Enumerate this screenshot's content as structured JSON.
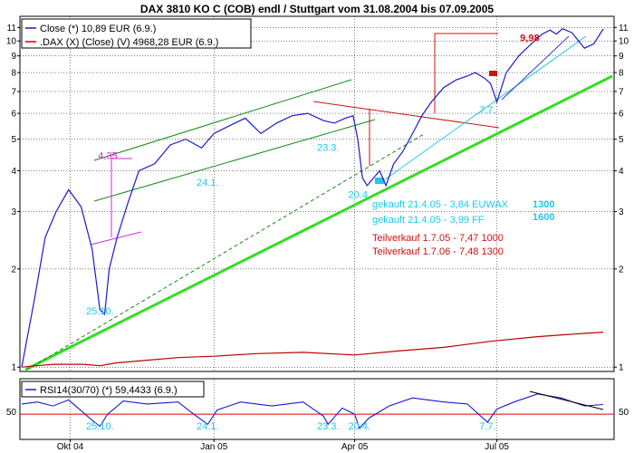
{
  "chart_data": {
    "type": "line",
    "title": "DAX 3810 KO C (COB) endl / Stuttgart vom 31.08.2004 bis 07.09.2005",
    "colors": {
      "close": "#1a1ad0",
      "dax": "#c00000",
      "rsi": "#1a1ad0",
      "rsi_level": "#e00000",
      "trend_main": "#33dd22",
      "channel": "#138a13",
      "cyan": "#1ec8ee",
      "magenta": "#e020e0",
      "red_ann": "#d01010",
      "dashed": "#108a10"
    },
    "x_ticks": [
      {
        "label": "Okt 04",
        "day": 31
      },
      {
        "label": "Jan 05",
        "day": 123
      },
      {
        "label": "Apr 05",
        "day": 213
      },
      {
        "label": "Jul 05",
        "day": 304
      }
    ],
    "x_range": {
      "start": "31.08.2004",
      "end": "07.09.2005",
      "days": 372
    },
    "main_panel": {
      "scale": "log",
      "ylim": [
        0.97,
        11.9
      ],
      "y_ticks": [
        "1",
        "2",
        "3",
        "4",
        "5",
        "6",
        "7",
        "8",
        "9",
        "10",
        "11"
      ],
      "y_tick_values": [
        1,
        2,
        3,
        4,
        5,
        6,
        7,
        8,
        9,
        10,
        11
      ]
    },
    "legend": [
      {
        "key": "close",
        "text": "Close (*) 10,89 EUR (6.9.)"
      },
      {
        "key": "dax",
        "text": ".DAX (X) (Close) (V) 4968,28 EUR (6.9.)"
      }
    ],
    "series": [
      {
        "name": "Close",
        "key": "close",
        "x": [
          0,
          8,
          15,
          22,
          30,
          38,
          45,
          50,
          53,
          56,
          61,
          68,
          75,
          85,
          95,
          105,
          115,
          123,
          133,
          143,
          153,
          163,
          173,
          183,
          193,
          200,
          207,
          212,
          215,
          218,
          221,
          225,
          229,
          233,
          238,
          244,
          250,
          256,
          262,
          270,
          278,
          285,
          290,
          296,
          300,
          304,
          310,
          318,
          326,
          333,
          338,
          342,
          346,
          352,
          360,
          366,
          372
        ],
        "y": [
          1.0,
          1.6,
          2.5,
          3.0,
          3.5,
          3.1,
          2.3,
          1.5,
          1.45,
          2.0,
          2.5,
          3.2,
          4.0,
          4.2,
          4.8,
          5.0,
          4.7,
          5.2,
          5.5,
          5.8,
          5.2,
          5.6,
          5.9,
          6.0,
          5.7,
          5.6,
          5.8,
          5.9,
          5.0,
          3.8,
          3.6,
          3.8,
          4.0,
          3.6,
          4.2,
          4.6,
          5.2,
          5.9,
          6.5,
          7.2,
          7.6,
          7.8,
          8.0,
          7.7,
          7.4,
          6.5,
          8.0,
          9.0,
          9.8,
          10.5,
          10.8,
          10.5,
          10.9,
          10.6,
          9.5,
          9.8,
          10.89
        ]
      },
      {
        "name": ".DAX (X) (Close) (V)",
        "key": "dax",
        "x": [
          0,
          20,
          40,
          50,
          60,
          80,
          100,
          123,
          150,
          180,
          213,
          240,
          270,
          300,
          330,
          350,
          372
        ],
        "y": [
          1.0,
          1.02,
          1.02,
          1.01,
          1.03,
          1.05,
          1.07,
          1.08,
          1.1,
          1.11,
          1.09,
          1.12,
          1.15,
          1.2,
          1.24,
          1.26,
          1.28
        ]
      }
    ],
    "annotations": [
      {
        "text": "9,98",
        "key": "red_ann",
        "x": 325,
        "y": 9.98
      },
      {
        "text": "4,35",
        "key": "magenta",
        "x": 55,
        "y": 4.35
      },
      {
        "text": "24.1.",
        "key": "cyan",
        "x": 119,
        "y": 3.6
      },
      {
        "text": "23.3.",
        "key": "cyan",
        "x": 196,
        "y": 4.6
      },
      {
        "text": "20.4.",
        "key": "cyan",
        "x": 216,
        "y": 3.3
      },
      {
        "text": "25.10.",
        "key": "cyan",
        "x": 50,
        "y": 1.45
      },
      {
        "text": "7.7.",
        "key": "cyan",
        "x": 298,
        "y": 6.0
      }
    ],
    "notes": [
      {
        "text": "gekauft  21.4.05 - 3,84 EUWAX",
        "key": "cyan"
      },
      {
        "text": "gekauft  21.4.05 - 3,99 FF",
        "key": "cyan"
      },
      {
        "text": "1300",
        "key": "cyan"
      },
      {
        "text": "1600",
        "key": "cyan"
      },
      {
        "text": "Teilverkauf 1.7.05 - 7,47    1000",
        "key": "red_ann"
      },
      {
        "text": "Teilverkauf 1.7.06 - 7,48    1300",
        "key": "red_ann"
      }
    ],
    "rsi_panel": {
      "legend": "RSI14(30/70) (*) 59,4433 (6.9.)",
      "y_ticks": [
        "50"
      ],
      "level": 50,
      "ylim": [
        25,
        85
      ],
      "series": {
        "name": "RSI14(30/70)",
        "x": [
          0,
          10,
          20,
          30,
          45,
          50,
          55,
          65,
          80,
          100,
          110,
          119,
          125,
          140,
          160,
          180,
          193,
          196,
          205,
          213,
          216,
          222,
          235,
          250,
          270,
          285,
          298,
          304,
          315,
          330,
          345,
          360,
          372
        ],
        "y": [
          60,
          62,
          58,
          64,
          44,
          38,
          50,
          63,
          60,
          62,
          50,
          40,
          54,
          62,
          58,
          62,
          48,
          40,
          56,
          50,
          36,
          46,
          58,
          66,
          62,
          60,
          42,
          55,
          62,
          70,
          66,
          58,
          59.44
        ]
      },
      "annotations": [
        {
          "text": "25.10.",
          "x": 50
        },
        {
          "text": "24.1.",
          "x": 119
        },
        {
          "text": "23.3.",
          "x": 196
        },
        {
          "text": "20.4.",
          "x": 216
        },
        {
          "text": "7.7.",
          "x": 298
        }
      ]
    }
  }
}
